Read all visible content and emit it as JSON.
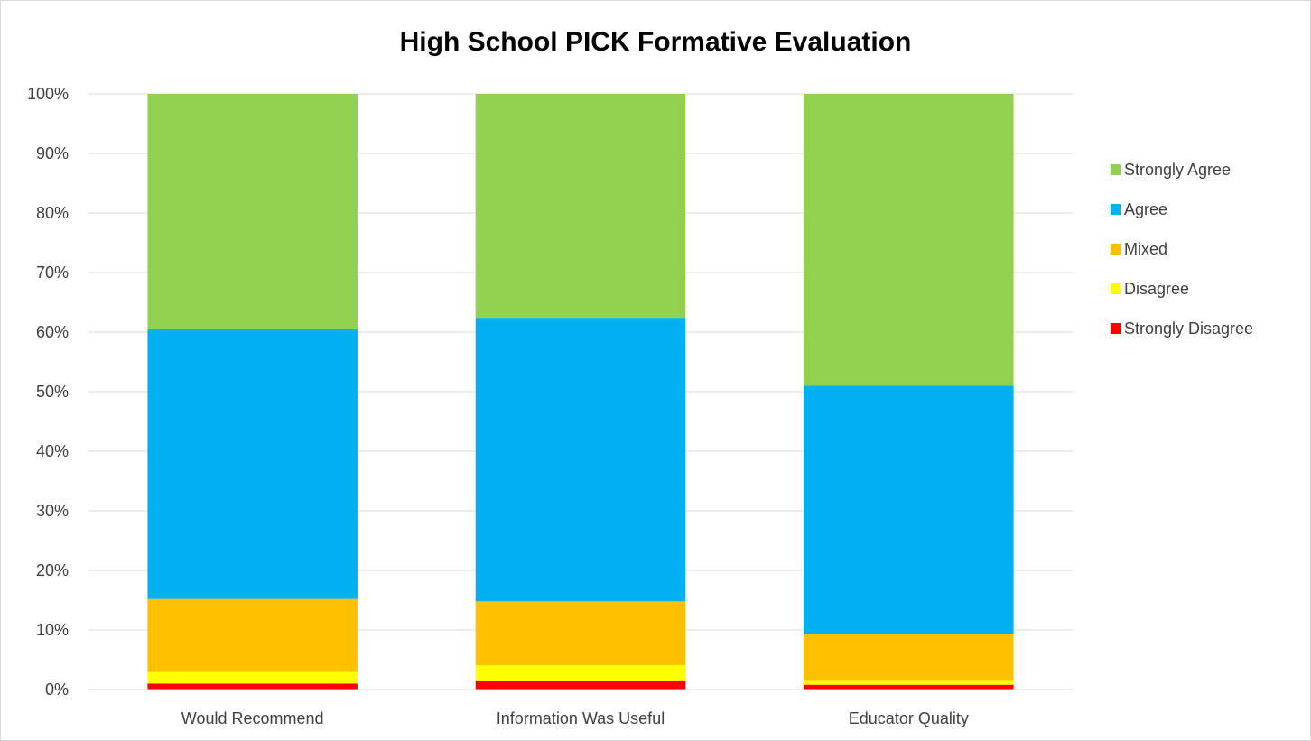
{
  "chart_data": {
    "type": "bar",
    "stacked": true,
    "title": "High School PICK Formative Evaluation",
    "xlabel": "",
    "ylabel": "",
    "ylim": [
      0,
      100
    ],
    "yticks": [
      "0%",
      "10%",
      "20%",
      "30%",
      "40%",
      "50%",
      "60%",
      "70%",
      "80%",
      "90%",
      "100%"
    ],
    "y_tick_values": [
      0,
      10,
      20,
      30,
      40,
      50,
      60,
      70,
      80,
      90,
      100
    ],
    "grid": true,
    "legend_position": "right",
    "categories": [
      "Would Recommend",
      "Information Was Useful",
      "Educator Quality"
    ],
    "series": [
      {
        "name": "Strongly Disagree",
        "color": "#ff0000",
        "values": [
          1.0,
          1.5,
          0.8
        ]
      },
      {
        "name": "Disagree",
        "color": "#ffff00",
        "values": [
          2.1,
          2.6,
          0.8
        ]
      },
      {
        "name": "Mixed",
        "color": "#ffc000",
        "values": [
          12.1,
          10.7,
          7.7
        ]
      },
      {
        "name": "Agree",
        "color": "#00b0f0",
        "values": [
          45.3,
          47.6,
          41.7
        ]
      },
      {
        "name": "Strongly Agree",
        "color": "#92d050",
        "values": [
          39.5,
          37.6,
          49.0
        ]
      }
    ]
  }
}
